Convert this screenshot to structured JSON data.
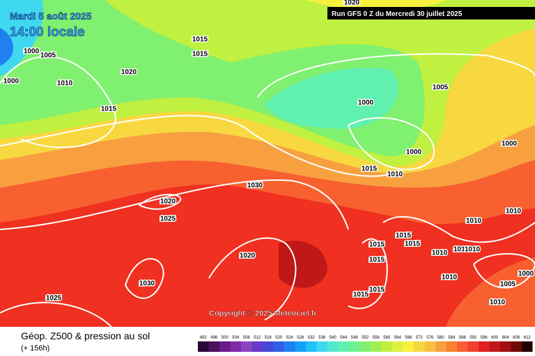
{
  "header": {
    "date": "Mardi 5 août 2025",
    "time": "14:00 locale",
    "run": "Run GFS 0 Z du Mercredi 30 juillet 2025"
  },
  "copyright": "Copyright © 2025 Meteociel.fr",
  "footer": {
    "title": "Géop. Z500 & pression au sol",
    "subtitle": "(+ 156h)"
  },
  "isobar_labels": [
    "1000",
    "1005",
    "1000",
    "1010",
    "1020",
    "1015",
    "1015",
    "1015",
    "1020",
    "1005",
    "1000",
    "1000",
    "1000",
    "1015",
    "1010",
    "1030",
    "1020",
    "1025",
    "1010",
    "1010",
    "1015",
    "1015",
    "1015",
    "1010",
    "1010",
    "1010",
    "1020",
    "1015",
    "1030",
    "1010",
    "1005",
    "1000",
    "1015",
    "1015",
    "1025",
    "1010"
  ],
  "colorbar": {
    "labels": [
      "492",
      "496",
      "500",
      "504",
      "508",
      "512",
      "516",
      "520",
      "524",
      "528",
      "532",
      "536",
      "540",
      "544",
      "548",
      "552",
      "556",
      "560",
      "564",
      "568",
      "572",
      "576",
      "580",
      "584",
      "588",
      "592",
      "596",
      "600",
      "604",
      "608",
      "612"
    ],
    "colors": [
      "#2a0a3a",
      "#4b1060",
      "#6a1a8a",
      "#7f2aa8",
      "#8c44c4",
      "#6a3ac8",
      "#4848d8",
      "#3060e8",
      "#2080f0",
      "#10a0f8",
      "#20c0f8",
      "#40d8f0",
      "#50e8d0",
      "#60f0b0",
      "#70f090",
      "#80f070",
      "#a0f050",
      "#c0f040",
      "#e0f040",
      "#f8f040",
      "#f8d840",
      "#f8c040",
      "#f8a040",
      "#f88030",
      "#f86030",
      "#f04030",
      "#e02020",
      "#c01818",
      "#a01010",
      "#700808",
      "#200000"
    ]
  }
}
